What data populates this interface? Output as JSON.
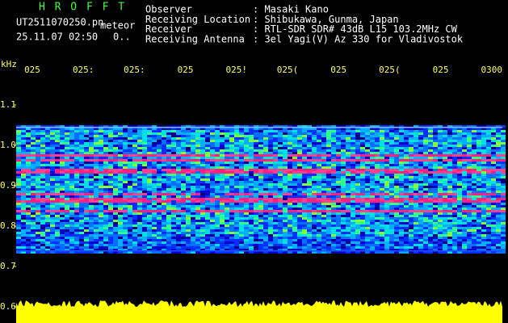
{
  "header": {
    "app": "H R O F F T",
    "file": "UT2511070250.pn",
    "mode": "meteor",
    "datetime": "25.11.07 02:50",
    "status": "0..",
    "fields": [
      {
        "label": "Observer",
        "value": ": Masaki Kano"
      },
      {
        "label": "Receiving Location",
        "value": ": Shibukawa, Gunma, Japan"
      },
      {
        "label": "Receiver",
        "value": ": RTL-SDR SDR# 43dB L15 103.2MHz CW"
      },
      {
        "label": "Receiving Antenna",
        "value": ": 3el Yagi(V) Az 330 for Vladivostok"
      }
    ]
  },
  "chart_data": {
    "type": "spectrogram",
    "ylabel": "kHz",
    "categories": [
      "025",
      "025:",
      "025:",
      "025",
      "025!",
      "025(",
      "025",
      "025(",
      "025",
      "0300"
    ],
    "ylim": [
      0.56,
      1.18
    ],
    "yticks": [
      {
        "value": 1.1,
        "label": "1.1"
      },
      {
        "value": 1.0,
        "label": "1.0"
      },
      {
        "value": 0.9,
        "label": "0.9"
      },
      {
        "value": 0.8,
        "label": "0.8"
      },
      {
        "value": 0.7,
        "label": "0.7"
      },
      {
        "value": 0.6,
        "label": "0.6"
      }
    ]
  }
}
